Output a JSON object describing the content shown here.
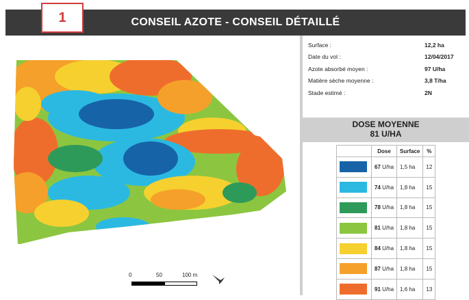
{
  "header": {
    "badge": "1",
    "title": "CONSEIL AZOTE - CONSEIL DÉTAILLÉ"
  },
  "info": [
    {
      "label": "Surface :",
      "value": "12,2 ha"
    },
    {
      "label": "Date du vol :",
      "value": "12/04/2017"
    },
    {
      "label": "Azote absorbé moyen :",
      "value": "97 U/ha"
    },
    {
      "label": "Matière sèche moyenne :",
      "value": "3,8 T/ha"
    },
    {
      "label": "Stade estimé :",
      "value": "2N"
    }
  ],
  "dose": {
    "title": "DOSE MOYENNE",
    "value": "81 U/HA"
  },
  "legend": {
    "headers": [
      "Dose",
      "Surface",
      "%"
    ],
    "rows": [
      {
        "color": "#1763a8",
        "dose_num": "67",
        "dose_unit": " U/ha",
        "surface": "1,5 ha",
        "pct": "12"
      },
      {
        "color": "#2bb9e2",
        "dose_num": "74",
        "dose_unit": " U/ha",
        "surface": "1,8 ha",
        "pct": "15"
      },
      {
        "color": "#2e9a5a",
        "dose_num": "78",
        "dose_unit": " U/ha",
        "surface": "1,8 ha",
        "pct": "15"
      },
      {
        "color": "#8cc640",
        "dose_num": "81",
        "dose_unit": " U/ha",
        "surface": "1,8 ha",
        "pct": "15"
      },
      {
        "color": "#f6d02f",
        "dose_num": "84",
        "dose_unit": " U/ha",
        "surface": "1,8 ha",
        "pct": "15"
      },
      {
        "color": "#f5a02a",
        "dose_num": "87",
        "dose_unit": " U/ha",
        "surface": "1,8 ha",
        "pct": "15"
      },
      {
        "color": "#ef6d2c",
        "dose_num": "91",
        "dose_unit": " U/ha",
        "surface": "1,6 ha",
        "pct": "13"
      }
    ]
  },
  "scale": {
    "labels": [
      "0",
      "50",
      "100 m"
    ]
  }
}
